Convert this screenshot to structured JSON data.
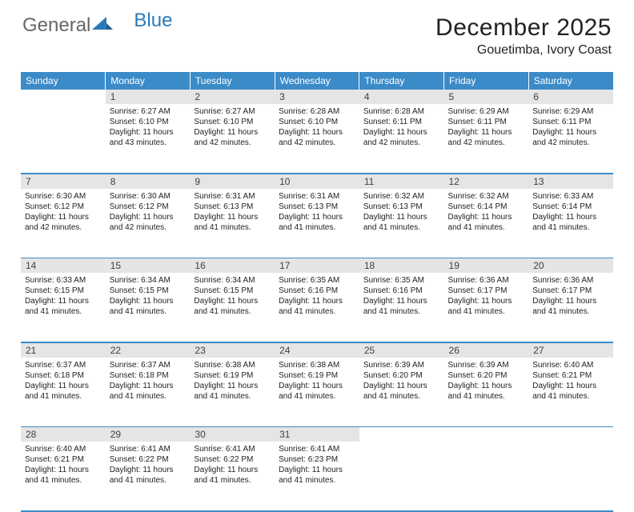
{
  "logo": {
    "word1": "General",
    "word2": "Blue",
    "icon_color": "#2a7ab8",
    "text_color_1": "#666666",
    "text_color_2": "#2a7ab8"
  },
  "title": "December 2025",
  "location": "Gouetimba, Ivory Coast",
  "header_bg": "#3b8bc9",
  "days_of_week": [
    "Sunday",
    "Monday",
    "Tuesday",
    "Wednesday",
    "Thursday",
    "Friday",
    "Saturday"
  ],
  "weeks": [
    [
      null,
      {
        "n": "1",
        "sunrise": "6:27 AM",
        "sunset": "6:10 PM",
        "daylight": "11 hours and 43 minutes."
      },
      {
        "n": "2",
        "sunrise": "6:27 AM",
        "sunset": "6:10 PM",
        "daylight": "11 hours and 42 minutes."
      },
      {
        "n": "3",
        "sunrise": "6:28 AM",
        "sunset": "6:10 PM",
        "daylight": "11 hours and 42 minutes."
      },
      {
        "n": "4",
        "sunrise": "6:28 AM",
        "sunset": "6:11 PM",
        "daylight": "11 hours and 42 minutes."
      },
      {
        "n": "5",
        "sunrise": "6:29 AM",
        "sunset": "6:11 PM",
        "daylight": "11 hours and 42 minutes."
      },
      {
        "n": "6",
        "sunrise": "6:29 AM",
        "sunset": "6:11 PM",
        "daylight": "11 hours and 42 minutes."
      }
    ],
    [
      {
        "n": "7",
        "sunrise": "6:30 AM",
        "sunset": "6:12 PM",
        "daylight": "11 hours and 42 minutes."
      },
      {
        "n": "8",
        "sunrise": "6:30 AM",
        "sunset": "6:12 PM",
        "daylight": "11 hours and 42 minutes."
      },
      {
        "n": "9",
        "sunrise": "6:31 AM",
        "sunset": "6:13 PM",
        "daylight": "11 hours and 41 minutes."
      },
      {
        "n": "10",
        "sunrise": "6:31 AM",
        "sunset": "6:13 PM",
        "daylight": "11 hours and 41 minutes."
      },
      {
        "n": "11",
        "sunrise": "6:32 AM",
        "sunset": "6:13 PM",
        "daylight": "11 hours and 41 minutes."
      },
      {
        "n": "12",
        "sunrise": "6:32 AM",
        "sunset": "6:14 PM",
        "daylight": "11 hours and 41 minutes."
      },
      {
        "n": "13",
        "sunrise": "6:33 AM",
        "sunset": "6:14 PM",
        "daylight": "11 hours and 41 minutes."
      }
    ],
    [
      {
        "n": "14",
        "sunrise": "6:33 AM",
        "sunset": "6:15 PM",
        "daylight": "11 hours and 41 minutes."
      },
      {
        "n": "15",
        "sunrise": "6:34 AM",
        "sunset": "6:15 PM",
        "daylight": "11 hours and 41 minutes."
      },
      {
        "n": "16",
        "sunrise": "6:34 AM",
        "sunset": "6:15 PM",
        "daylight": "11 hours and 41 minutes."
      },
      {
        "n": "17",
        "sunrise": "6:35 AM",
        "sunset": "6:16 PM",
        "daylight": "11 hours and 41 minutes."
      },
      {
        "n": "18",
        "sunrise": "6:35 AM",
        "sunset": "6:16 PM",
        "daylight": "11 hours and 41 minutes."
      },
      {
        "n": "19",
        "sunrise": "6:36 AM",
        "sunset": "6:17 PM",
        "daylight": "11 hours and 41 minutes."
      },
      {
        "n": "20",
        "sunrise": "6:36 AM",
        "sunset": "6:17 PM",
        "daylight": "11 hours and 41 minutes."
      }
    ],
    [
      {
        "n": "21",
        "sunrise": "6:37 AM",
        "sunset": "6:18 PM",
        "daylight": "11 hours and 41 minutes."
      },
      {
        "n": "22",
        "sunrise": "6:37 AM",
        "sunset": "6:18 PM",
        "daylight": "11 hours and 41 minutes."
      },
      {
        "n": "23",
        "sunrise": "6:38 AM",
        "sunset": "6:19 PM",
        "daylight": "11 hours and 41 minutes."
      },
      {
        "n": "24",
        "sunrise": "6:38 AM",
        "sunset": "6:19 PM",
        "daylight": "11 hours and 41 minutes."
      },
      {
        "n": "25",
        "sunrise": "6:39 AM",
        "sunset": "6:20 PM",
        "daylight": "11 hours and 41 minutes."
      },
      {
        "n": "26",
        "sunrise": "6:39 AM",
        "sunset": "6:20 PM",
        "daylight": "11 hours and 41 minutes."
      },
      {
        "n": "27",
        "sunrise": "6:40 AM",
        "sunset": "6:21 PM",
        "daylight": "11 hours and 41 minutes."
      }
    ],
    [
      {
        "n": "28",
        "sunrise": "6:40 AM",
        "sunset": "6:21 PM",
        "daylight": "11 hours and 41 minutes."
      },
      {
        "n": "29",
        "sunrise": "6:41 AM",
        "sunset": "6:22 PM",
        "daylight": "11 hours and 41 minutes."
      },
      {
        "n": "30",
        "sunrise": "6:41 AM",
        "sunset": "6:22 PM",
        "daylight": "11 hours and 41 minutes."
      },
      {
        "n": "31",
        "sunrise": "6:41 AM",
        "sunset": "6:23 PM",
        "daylight": "11 hours and 41 minutes."
      },
      null,
      null,
      null
    ]
  ],
  "labels": {
    "sunrise": "Sunrise: ",
    "sunset": "Sunset: ",
    "daylight": "Daylight: "
  },
  "style": {
    "daynum_bg": "#e5e5e5",
    "cell_font_size": 10,
    "header_font_size": 12,
    "rule_color": "#3b8bc9"
  }
}
